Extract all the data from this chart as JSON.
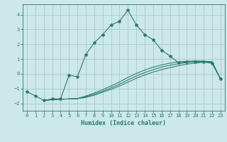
{
  "xlabel": "Humidex (Indice chaleur)",
  "background_color": "#cce8e8",
  "grid_color": "#aacaca",
  "line_color": "#2a7a6a",
  "xlim": [
    -0.5,
    23.5
  ],
  "ylim": [
    -2.5,
    4.7
  ],
  "xticks": [
    0,
    1,
    2,
    3,
    4,
    5,
    6,
    7,
    8,
    9,
    10,
    11,
    12,
    13,
    14,
    15,
    16,
    17,
    18,
    19,
    20,
    21,
    22,
    23
  ],
  "yticks": [
    -2,
    -1,
    0,
    1,
    2,
    3,
    4
  ],
  "series1_x": [
    0,
    1,
    2,
    3,
    4,
    5,
    6,
    7,
    8,
    9,
    10,
    11,
    12,
    13,
    14,
    15,
    16,
    17,
    18,
    19,
    20,
    21,
    22,
    23
  ],
  "series1_y": [
    -1.2,
    -1.5,
    -1.8,
    -1.7,
    -1.7,
    -0.1,
    -0.2,
    1.3,
    2.1,
    2.65,
    3.3,
    3.55,
    4.3,
    3.3,
    2.65,
    2.3,
    1.6,
    1.2,
    0.75,
    0.8,
    0.8,
    0.8,
    0.7,
    -0.35
  ],
  "series2_x": [
    2,
    3,
    4,
    5,
    6,
    7,
    8,
    9,
    10,
    11,
    12,
    13,
    14,
    15,
    16,
    17,
    18,
    19,
    20,
    21,
    22,
    23
  ],
  "series2_y": [
    -1.8,
    -1.75,
    -1.72,
    -1.7,
    -1.68,
    -1.6,
    -1.45,
    -1.25,
    -1.05,
    -0.82,
    -0.57,
    -0.3,
    -0.08,
    0.12,
    0.28,
    0.42,
    0.55,
    0.65,
    0.72,
    0.78,
    0.8,
    -0.35
  ],
  "series3_x": [
    2,
    3,
    4,
    5,
    6,
    7,
    8,
    9,
    10,
    11,
    12,
    13,
    14,
    15,
    16,
    17,
    18,
    19,
    20,
    21,
    22,
    23
  ],
  "series3_y": [
    -1.8,
    -1.75,
    -1.72,
    -1.7,
    -1.68,
    -1.55,
    -1.38,
    -1.18,
    -0.95,
    -0.7,
    -0.42,
    -0.15,
    0.08,
    0.28,
    0.45,
    0.58,
    0.68,
    0.76,
    0.82,
    0.85,
    0.82,
    -0.35
  ],
  "series4_x": [
    2,
    3,
    4,
    5,
    6,
    7,
    8,
    9,
    10,
    11,
    12,
    13,
    14,
    15,
    16,
    17,
    18,
    19,
    20,
    21,
    22,
    23
  ],
  "series4_y": [
    -1.8,
    -1.75,
    -1.72,
    -1.7,
    -1.68,
    -1.5,
    -1.3,
    -1.08,
    -0.82,
    -0.55,
    -0.25,
    0.02,
    0.25,
    0.45,
    0.6,
    0.72,
    0.8,
    0.85,
    0.87,
    0.85,
    0.78,
    -0.35
  ]
}
